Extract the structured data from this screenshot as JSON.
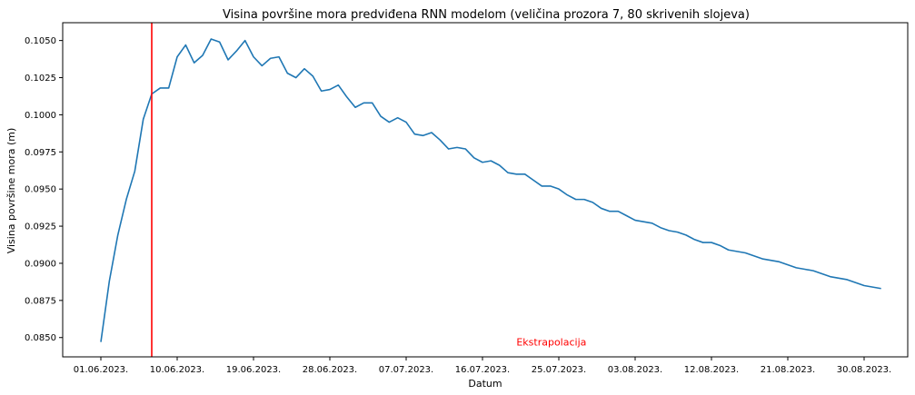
{
  "chart_data": {
    "type": "line",
    "title": "Visina površine mora predviđena RNN modelom (veličina prozora 7, 80 skrivenih slojeva)",
    "xlabel": "Datum",
    "ylabel": "Visina površine mora (m)",
    "x_start": "01.06.2023.",
    "x_ticks": [
      "01.06.2023.",
      "10.06.2023.",
      "19.06.2023.",
      "28.06.2023.",
      "07.07.2023.",
      "16.07.2023.",
      "25.07.2023.",
      "03.08.2023.",
      "12.08.2023.",
      "21.08.2023.",
      "30.08.2023."
    ],
    "y_ticks": [
      "0.0850",
      "0.0875",
      "0.0900",
      "0.0925",
      "0.0950",
      "0.0975",
      "0.1000",
      "0.1025",
      "0.1050"
    ],
    "ylim": [
      0.0837,
      0.1062
    ],
    "grid": false,
    "vline": {
      "date": "07.06.2023.",
      "color": "#ff0000"
    },
    "annotation": {
      "text": "Ekstrapolacija",
      "color": "#ff0000",
      "date": "20.07.2023.",
      "y": 0.0847
    },
    "series": [
      {
        "color": "#1f77b4",
        "values": [
          0.0847,
          0.0888,
          0.0919,
          0.0943,
          0.0962,
          0.0997,
          0.1014,
          0.1018,
          0.1018,
          0.1039,
          0.1047,
          0.1035,
          0.104,
          0.1051,
          0.1049,
          0.1037,
          0.1043,
          0.105,
          0.1039,
          0.1033,
          0.1038,
          0.1039,
          0.1028,
          0.1025,
          0.1031,
          0.1026,
          0.1016,
          0.1017,
          0.102,
          0.1012,
          0.1005,
          0.1008,
          0.1008,
          0.0999,
          0.0995,
          0.0998,
          0.0995,
          0.0987,
          0.0986,
          0.0988,
          0.0983,
          0.0977,
          0.0978,
          0.0977,
          0.0971,
          0.0968,
          0.0969,
          0.0966,
          0.0961,
          0.096,
          0.096,
          0.0956,
          0.0952,
          0.0952,
          0.095,
          0.0946,
          0.0943,
          0.0943,
          0.0941,
          0.0937,
          0.0935,
          0.0935,
          0.0932,
          0.0929,
          0.0928,
          0.0927,
          0.0924,
          0.0922,
          0.0921,
          0.0919,
          0.0916,
          0.0914,
          0.0914,
          0.0912,
          0.0909,
          0.0908,
          0.0907,
          0.0905,
          0.0903,
          0.0902,
          0.0901,
          0.0899,
          0.0897,
          0.0896,
          0.0895,
          0.0893,
          0.0891,
          0.089,
          0.0889,
          0.0887,
          0.0885,
          0.0884,
          0.0883
        ]
      }
    ]
  }
}
